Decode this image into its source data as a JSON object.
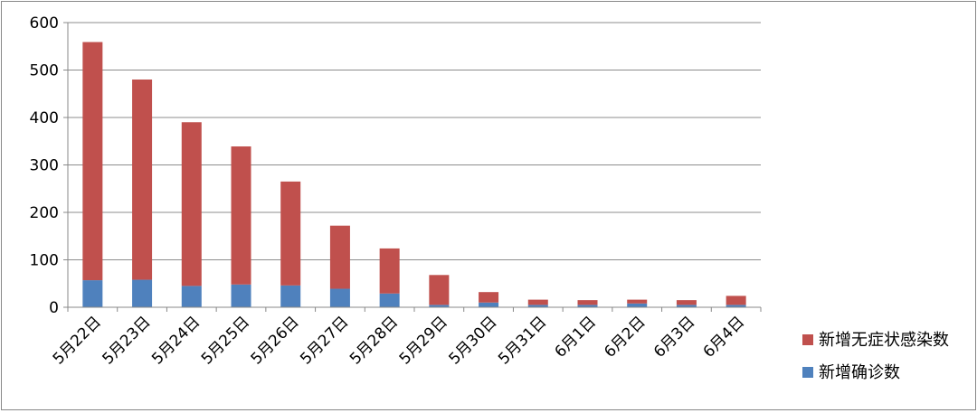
{
  "chart_data": {
    "type": "bar",
    "stacked": true,
    "categories": [
      "5月22日",
      "5月23日",
      "5月24日",
      "5月25日",
      "5月26日",
      "5月27日",
      "5月28日",
      "5月29日",
      "5月30日",
      "5月31日",
      "6月1日",
      "6月2日",
      "6月3日",
      "6月4日"
    ],
    "series": [
      {
        "name": "新增确诊数",
        "color": "#4F81BD",
        "values": [
          57,
          58,
          45,
          48,
          46,
          39,
          29,
          5,
          10,
          5,
          5,
          8,
          5,
          5
        ]
      },
      {
        "name": "新增无症状感染数",
        "color": "#C0504D",
        "values": [
          502,
          422,
          345,
          291,
          219,
          133,
          95,
          63,
          22,
          11,
          10,
          8,
          10,
          19
        ]
      }
    ],
    "ylim": [
      0,
      600
    ],
    "yticks": [
      "0",
      "100",
      "200",
      "300",
      "400",
      "500",
      "600"
    ],
    "grid": true,
    "legend_position": "right",
    "title": "",
    "xlabel": "",
    "ylabel": ""
  }
}
